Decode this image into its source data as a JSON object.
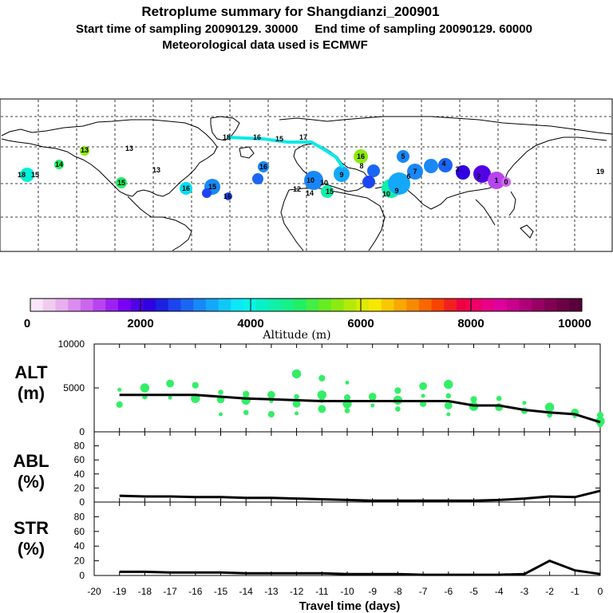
{
  "header": {
    "title": "Retroplume summary for Shangdianzi_200901",
    "subtitle": "Start time of sampling 20090129. 30000     End time of sampling 20090129. 60000",
    "met_line": "Meteorological data used is ECMWF"
  },
  "colorbar": {
    "title": "Altitude (m)",
    "tick_labels": [
      "0",
      "2000",
      "4000",
      "6000",
      "8000",
      "10000"
    ],
    "min": 0,
    "max": 10000,
    "colors": [
      "#f7e6f7",
      "#f0ccf0",
      "#e8b0ee",
      "#dc8cee",
      "#cc66ee",
      "#b844f0",
      "#9c22f2",
      "#7a00f4",
      "#5200e6",
      "#3000e0",
      "#1a22e0",
      "#1c44f0",
      "#1a66f4",
      "#1888f6",
      "#14a8f8",
      "#10c8f8",
      "#0ce8f8",
      "#06f4e8",
      "#08f0c8",
      "#10f0a8",
      "#18f088",
      "#22ee66",
      "#44ee44",
      "#66ec22",
      "#8cea10",
      "#b4ea08",
      "#dcea04",
      "#f8e800",
      "#f8c800",
      "#f8a800",
      "#f88a00",
      "#f86800",
      "#f84400",
      "#f02020",
      "#ee0044",
      "#ee0066",
      "#e80088",
      "#dc009c",
      "#c8008c",
      "#b00078",
      "#980064",
      "#800054",
      "#6c0044",
      "#58003c"
    ]
  },
  "map": {
    "labels": [
      {
        "t": "18",
        "c": "#00f0d8"
      },
      {
        "t": "15",
        "c": "#00f0d8"
      },
      {
        "t": "14",
        "c": "#22ee66"
      },
      {
        "t": "13",
        "c": "#8cea10"
      },
      {
        "t": "13",
        "c": "#dcea04"
      },
      {
        "t": "13",
        "c": "#22ee66"
      },
      {
        "t": "15",
        "c": "#00e0f0"
      },
      {
        "t": "16",
        "c": "#1a88f6"
      },
      {
        "t": "15",
        "c": "#1a66f4"
      },
      {
        "t": "16",
        "c": "#1a88f6"
      },
      {
        "t": "16",
        "c": "#1c44f0"
      },
      {
        "t": "10",
        "c": "#1888f6"
      },
      {
        "t": "12",
        "c": "#00e8d0"
      },
      {
        "t": "14",
        "c": "#10f0a8"
      },
      {
        "t": "15",
        "c": "#10f0a8"
      },
      {
        "t": "10",
        "c": "#1888f6"
      },
      {
        "t": "9",
        "c": "#00c8f8"
      },
      {
        "t": "16",
        "c": "#8cea10"
      },
      {
        "t": "8",
        "c": "#1a66f4"
      },
      {
        "t": "5",
        "c": "#1888f6"
      },
      {
        "t": "7",
        "c": "#1888f6"
      },
      {
        "t": "4",
        "c": "#1a66f4"
      },
      {
        "t": "10",
        "c": "#14a8f8"
      },
      {
        "t": "9",
        "c": "#14a8f8"
      },
      {
        "t": "6",
        "c": "#14a8f8"
      },
      {
        "t": "3",
        "c": "#5200e6"
      },
      {
        "t": "2",
        "c": "#7a00f4"
      },
      {
        "t": "1",
        "c": "#b844f0"
      },
      {
        "t": "0",
        "c": "#cc66ee"
      },
      {
        "t": "19",
        "c": "#22ee66"
      },
      {
        "t": "18",
        "c": "#22ee66"
      },
      {
        "t": "16",
        "c": "#22ee66"
      },
      {
        "t": "15",
        "c": "#22ee66"
      },
      {
        "t": "17",
        "c": "#22ee66"
      }
    ]
  },
  "panels": {
    "alt": {
      "label_top": "ALT",
      "label_bottom": "(m)"
    },
    "abl": {
      "label_top": "ABL",
      "label_bottom": "(%)"
    },
    "str": {
      "label_top": "STR",
      "label_bottom": "(%)"
    }
  },
  "xaxis": {
    "label": "Travel time (days)"
  },
  "chart_data": [
    {
      "type": "line",
      "panel": "ALT",
      "title": "ALT (m)",
      "xlabel": "Travel time (days)",
      "ylabel": "(m)",
      "xlim": [
        -20,
        0
      ],
      "ylim": [
        0,
        10000
      ],
      "y_ticks": [
        "0",
        "5000",
        "10000"
      ],
      "x": [
        -19,
        -18,
        -17,
        -16,
        -15,
        -14,
        -13,
        -12,
        -11,
        -10,
        -9,
        -8,
        -7,
        -6,
        -5,
        -4,
        -3,
        -2,
        -1,
        0
      ],
      "series": [
        {
          "name": "median altitude",
          "values": [
            4200,
            4200,
            4200,
            4200,
            4000,
            3800,
            3700,
            3600,
            3500,
            3500,
            3500,
            3500,
            3500,
            3500,
            3000,
            3000,
            2500,
            2200,
            2000,
            1100
          ]
        }
      ],
      "scatter_x": [
        -19,
        -19,
        -18,
        -18,
        -17,
        -17,
        -16,
        -16,
        -15,
        -15,
        -15,
        -14,
        -14,
        -14,
        -13,
        -13,
        -13,
        -12,
        -12,
        -12,
        -12,
        -11,
        -11,
        -11,
        -11,
        -10,
        -10,
        -10,
        -10,
        -9,
        -9,
        -8,
        -8,
        -8,
        -7,
        -7,
        -7,
        -6,
        -6,
        -6,
        -6,
        -5,
        -5,
        -4,
        -4,
        -3,
        -3,
        -2,
        -2,
        -1,
        -1,
        0,
        0,
        0
      ],
      "scatter_y": [
        4800,
        3100,
        5000,
        4000,
        5500,
        3900,
        5300,
        3800,
        4500,
        3700,
        2000,
        4300,
        3600,
        2200,
        4200,
        3500,
        2000,
        6600,
        4000,
        3200,
        2100,
        6100,
        4200,
        3600,
        2600,
        5600,
        3900,
        3200,
        2400,
        4000,
        3000,
        4700,
        3600,
        2600,
        5200,
        4100,
        3200,
        5400,
        4100,
        3000,
        2000,
        3700,
        2900,
        3800,
        2800,
        3300,
        2400,
        2800,
        1900,
        2200,
        1800,
        1900,
        1200,
        800
      ]
    },
    {
      "type": "line",
      "panel": "ABL",
      "title": "ABL (%)",
      "xlabel": "Travel time (days)",
      "ylabel": "(%)",
      "xlim": [
        -20,
        0
      ],
      "ylim": [
        0,
        100
      ],
      "y_ticks": [
        "0",
        "20",
        "40",
        "60",
        "80"
      ],
      "x": [
        -19,
        -18,
        -17,
        -16,
        -15,
        -14,
        -13,
        -12,
        -11,
        -10,
        -9,
        -8,
        -7,
        -6,
        -5,
        -4,
        -3,
        -2,
        -1,
        0
      ],
      "series": [
        {
          "name": "ABL fraction",
          "values": [
            9,
            8,
            8,
            7,
            7,
            6,
            6,
            5,
            4,
            3,
            2,
            2,
            2,
            2,
            2,
            3,
            5,
            8,
            7,
            16
          ]
        }
      ]
    },
    {
      "type": "line",
      "panel": "STR",
      "title": "STR (%)",
      "xlabel": "Travel time (days)",
      "ylabel": "(%)",
      "xlim": [
        -20,
        0
      ],
      "ylim": [
        0,
        100
      ],
      "y_ticks": [
        "0",
        "20",
        "40",
        "60",
        "80"
      ],
      "x": [
        -19,
        -18,
        -17,
        -16,
        -15,
        -14,
        -13,
        -12,
        -11,
        -10,
        -9,
        -8,
        -7,
        -6,
        -5,
        -4,
        -3,
        -2,
        -1,
        0
      ],
      "x_ticks": [
        "-20",
        "-19",
        "-18",
        "-17",
        "-16",
        "-15",
        "-14",
        "-13",
        "-12",
        "-11",
        "-10",
        "-9",
        "-8",
        "-7",
        "-6",
        "-5",
        "-4",
        "-3",
        "-2",
        "-1",
        "0"
      ],
      "series": [
        {
          "name": "stratosphere fraction",
          "values": [
            5,
            5,
            4,
            4,
            4,
            3,
            3,
            3,
            3,
            2,
            2,
            2,
            1,
            1,
            1,
            1,
            2,
            20,
            7,
            2
          ]
        }
      ]
    }
  ]
}
